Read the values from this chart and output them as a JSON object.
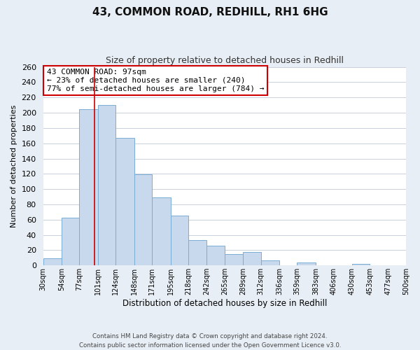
{
  "title": "43, COMMON ROAD, REDHILL, RH1 6HG",
  "subtitle": "Size of property relative to detached houses in Redhill",
  "xlabel": "Distribution of detached houses by size in Redhill",
  "ylabel": "Number of detached properties",
  "bin_edges": [
    30,
    54,
    77,
    101,
    124,
    148,
    171,
    195,
    218,
    242,
    265,
    289,
    312,
    336,
    359,
    383,
    406,
    430,
    453,
    477,
    500
  ],
  "bar_heights": [
    9,
    63,
    205,
    210,
    167,
    119,
    89,
    65,
    33,
    26,
    15,
    18,
    7,
    0,
    4,
    0,
    0,
    2,
    0,
    0
  ],
  "bar_color": "#c8d9ee",
  "bar_edge_color": "#7aadd4",
  "property_size": 97,
  "vline_color": "#cc0000",
  "annotation_line1": "43 COMMON ROAD: 97sqm",
  "annotation_line2": "← 23% of detached houses are smaller (240)",
  "annotation_line3": "77% of semi-detached houses are larger (784) →",
  "annotation_box_color": "#ffffff",
  "annotation_box_edge": "#cc0000",
  "ylim": [
    0,
    260
  ],
  "yticks": [
    0,
    20,
    40,
    60,
    80,
    100,
    120,
    140,
    160,
    180,
    200,
    220,
    240,
    260
  ],
  "tick_labels": [
    "30sqm",
    "54sqm",
    "77sqm",
    "101sqm",
    "124sqm",
    "148sqm",
    "171sqm",
    "195sqm",
    "218sqm",
    "242sqm",
    "265sqm",
    "289sqm",
    "312sqm",
    "336sqm",
    "359sqm",
    "383sqm",
    "406sqm",
    "430sqm",
    "453sqm",
    "477sqm",
    "500sqm"
  ],
  "footer_text": "Contains HM Land Registry data © Crown copyright and database right 2024.\nContains public sector information licensed under the Open Government Licence v3.0.",
  "bg_color": "#e8eef5",
  "plot_bg_color": "#ffffff",
  "grid_color": "#c8d0dc",
  "title_fontsize": 11,
  "subtitle_fontsize": 9,
  "ylabel_fontsize": 8,
  "xlabel_fontsize": 8.5,
  "ytick_fontsize": 8,
  "xtick_fontsize": 7
}
